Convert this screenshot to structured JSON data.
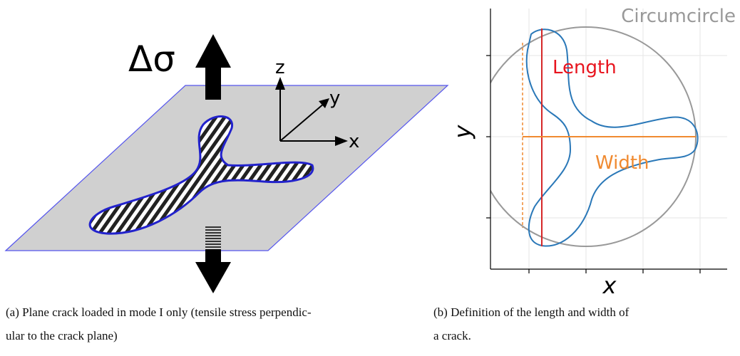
{
  "panel_a": {
    "stress_label": "Δσ",
    "axis_z": "z",
    "axis_y": "y",
    "axis_x": "x",
    "caption": [
      "(a) Plane crack loaded in mode I only (tensile stress perpendic-",
      "ular to the crack plane)"
    ]
  },
  "panel_b": {
    "circle_label": "Circumcircle",
    "length_label": "Length",
    "width_label": "Width",
    "y_label": "y",
    "x_label": "x",
    "caption": [
      "(b) Definition of the length and width of",
      "a crack."
    ]
  }
}
